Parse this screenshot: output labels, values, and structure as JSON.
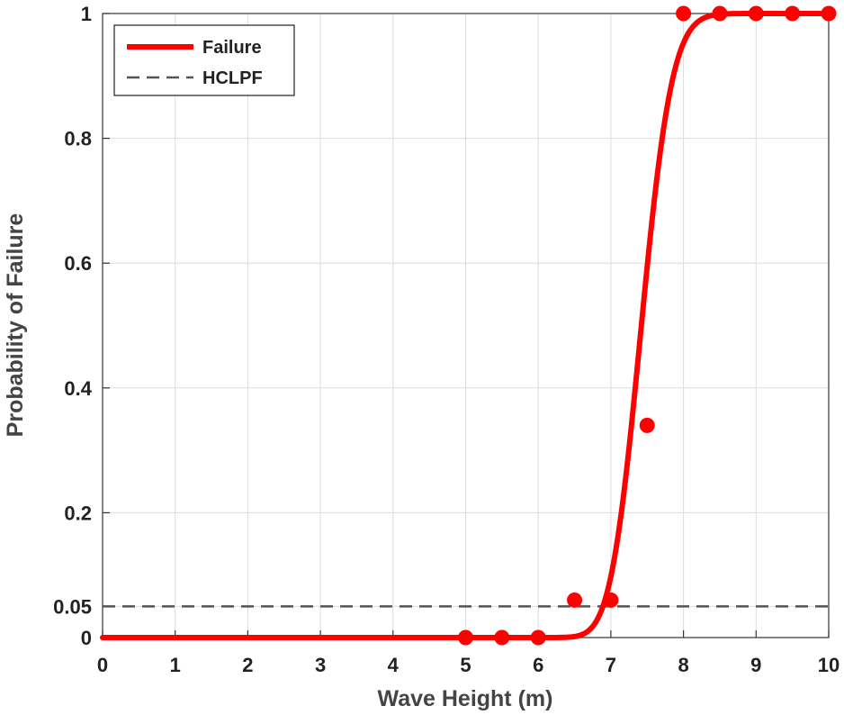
{
  "chart_data": {
    "type": "scatter",
    "xlabel": "Wave Height (m)",
    "ylabel": "Probability of Failure",
    "xlim": [
      0,
      10
    ],
    "ylim": [
      0,
      1
    ],
    "xticks": [
      0,
      1,
      2,
      3,
      4,
      5,
      6,
      7,
      8,
      9,
      10
    ],
    "yticks": [
      0,
      0.05,
      0.2,
      0.4,
      0.6,
      0.8,
      1
    ],
    "ytick_labels": [
      "0",
      "0.05",
      "0.2",
      "0.4",
      "0.6",
      "0.8",
      "1"
    ],
    "grid": true,
    "legend": {
      "location": "top-left",
      "entries": [
        "Failure",
        "HCLPF"
      ]
    },
    "series": [
      {
        "name": "Failure",
        "kind": "fitted-curve",
        "distribution": "lognormal-cdf",
        "median": 7.42,
        "beta": 0.045,
        "color": "#ff0000"
      },
      {
        "name": "Failure data",
        "kind": "points",
        "color": "#ff0000",
        "x": [
          5,
          5.5,
          6,
          6.5,
          7,
          7.5,
          8,
          8.5,
          9,
          9.5,
          10
        ],
        "y": [
          0,
          0,
          0,
          0.06,
          0.06,
          0.34,
          1,
          1,
          1,
          1,
          1
        ]
      },
      {
        "name": "HCLPF",
        "kind": "horizontal-line",
        "y": 0.05,
        "color": "#555555",
        "style": "dashed"
      }
    ]
  }
}
